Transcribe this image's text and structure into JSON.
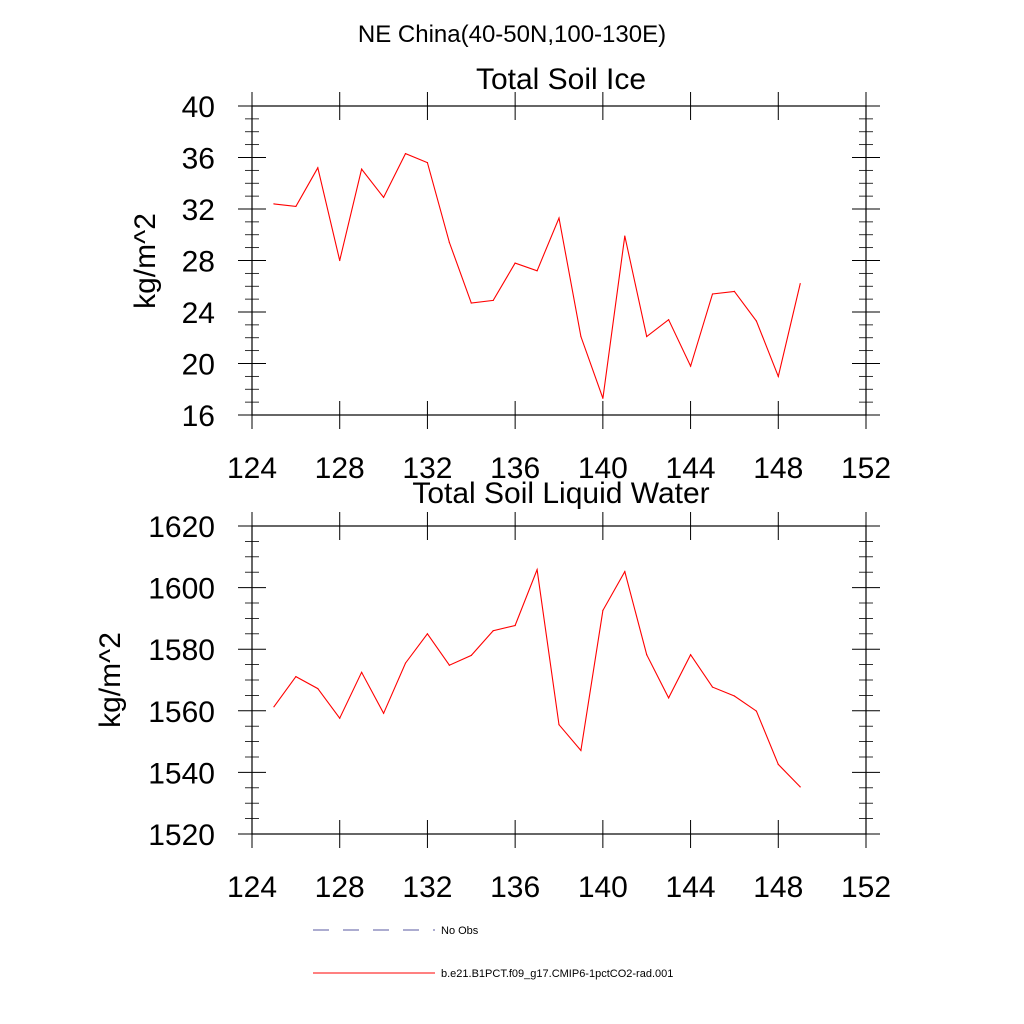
{
  "figure": {
    "suptitle": "NE China(40-50N,100-130E)"
  },
  "chart_data": [
    {
      "type": "line",
      "title": "Total Soil Ice",
      "xlabel": "",
      "ylabel": "kg/m^2",
      "xlim": [
        124,
        152
      ],
      "ylim": [
        16,
        40
      ],
      "xticks": [
        124,
        128,
        132,
        136,
        140,
        144,
        148,
        152
      ],
      "yticks": [
        16,
        20,
        24,
        28,
        32,
        36,
        40
      ],
      "grid": false,
      "series": [
        {
          "name": "b.e21.B1PCT.f09_g17.CMIP6-1pctCO2-rad.001",
          "color": "#ff0000",
          "x": [
            125,
            126,
            127,
            128,
            129,
            130,
            131,
            132,
            133,
            134,
            135,
            136,
            137,
            138,
            139,
            140,
            141,
            142,
            143,
            144,
            145,
            146,
            147,
            148,
            149
          ],
          "values": [
            32.4,
            32.2,
            35.2,
            28.0,
            35.1,
            32.9,
            36.3,
            35.6,
            29.4,
            24.7,
            24.9,
            27.8,
            27.2,
            31.3,
            22.1,
            17.3,
            29.9,
            22.1,
            23.4,
            19.8,
            25.4,
            25.6,
            23.3,
            19.0,
            26.2
          ]
        }
      ]
    },
    {
      "type": "line",
      "title": "Total Soil Liquid Water",
      "xlabel": "",
      "ylabel": "kg/m^2",
      "xlim": [
        124,
        152
      ],
      "ylim": [
        1520,
        1620
      ],
      "xticks": [
        124,
        128,
        132,
        136,
        140,
        144,
        148,
        152
      ],
      "yticks": [
        1520,
        1540,
        1560,
        1580,
        1600,
        1620
      ],
      "grid": false,
      "series": [
        {
          "name": "b.e21.B1PCT.f09_g17.CMIP6-1pctCO2-rad.001",
          "color": "#ff0000",
          "x": [
            125,
            126,
            127,
            128,
            129,
            130,
            131,
            132,
            133,
            134,
            135,
            136,
            137,
            138,
            139,
            140,
            141,
            142,
            143,
            144,
            145,
            146,
            147,
            148,
            149
          ],
          "values": [
            1561.3,
            1571.1,
            1567.2,
            1557.6,
            1572.5,
            1559.2,
            1575.5,
            1585.0,
            1574.8,
            1578.0,
            1586.0,
            1587.7,
            1605.8,
            1555.5,
            1547.1,
            1592.6,
            1605.2,
            1578.2,
            1564.2,
            1578.2,
            1567.7,
            1564.8,
            1559.9,
            1542.6,
            1535.3
          ]
        }
      ]
    }
  ],
  "legend": {
    "placement": "bottom",
    "entries": [
      {
        "label": "No Obs",
        "style": "dashed",
        "color": "#5a5aa0"
      },
      {
        "label": "b.e21.B1PCT.f09_g17.CMIP6-1pctCO2-rad.001",
        "style": "solid",
        "color": "#ff0000"
      }
    ]
  }
}
